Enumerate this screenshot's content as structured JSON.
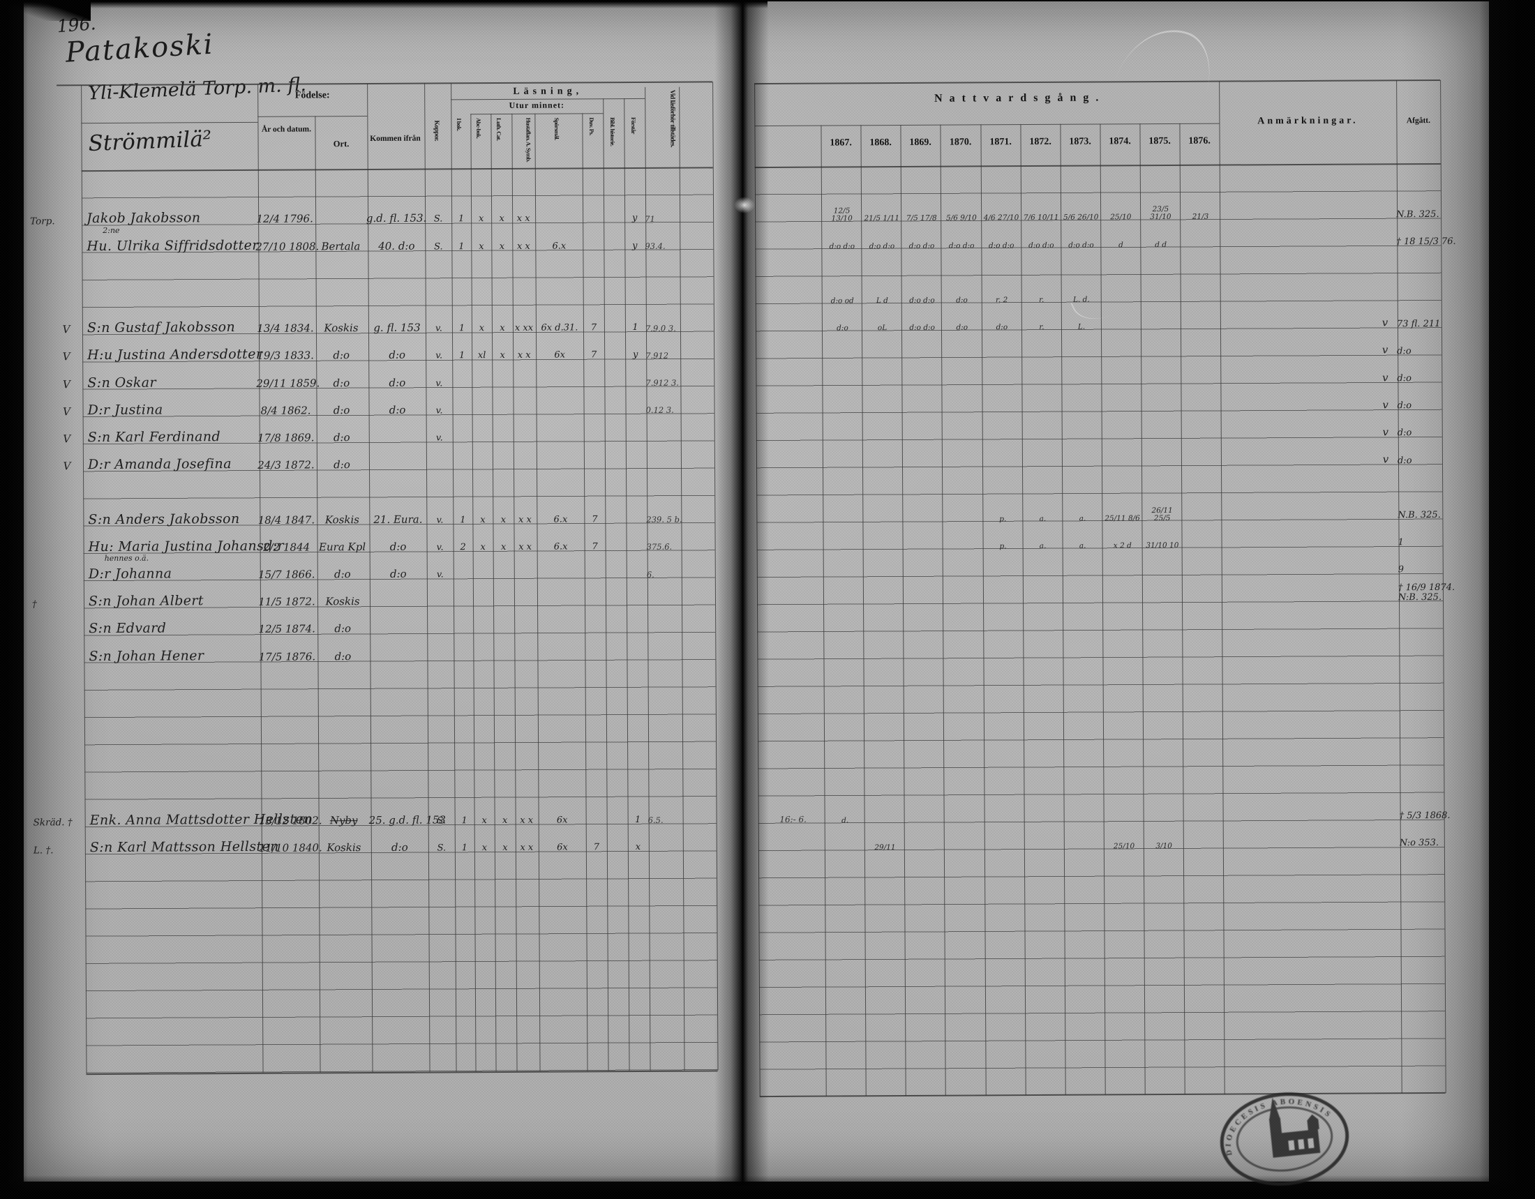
{
  "page": {
    "number": "196.",
    "place": "Patakoski",
    "holding_main": "Yli-Klemelä Torp. m. fl.",
    "holding_sub": "Strömmilä²"
  },
  "left_headers": {
    "fodelse": "Födelse:",
    "ar_och_datum": "År och datum.",
    "ort": "Ort.",
    "kommen_ifran": "Kommen ifrån",
    "koppor": "Koppor.",
    "lasning": "Läsning,",
    "utur_minnet": "Utur minnet:",
    "i_bok": "I bok.",
    "abc_bok": "Abc-bok.",
    "luth_cat": "Luth. Cat.",
    "hustaflan_symb": "Hustaflan. A. Symb.",
    "sporsmal": "Spörsmål.",
    "duv_ps": "Duv. Ps.",
    "bibl_historie": "Bibl. historie.",
    "forstar": "Förstår",
    "vid_lasforhor": "Vid läsförhör tillstädes."
  },
  "right_headers": {
    "title": "Nattvardsgång.",
    "years": [
      "1867.",
      "1868.",
      "1869.",
      "1870.",
      "1871.",
      "1872.",
      "1873.",
      "1874.",
      "1875.",
      "1876."
    ],
    "anmarkningar": "Anmärkningar.",
    "afgatt": "Afgått."
  },
  "rows": [
    {
      "line": 2,
      "margin": "Torp.",
      "name": "Jakob Jakobsson",
      "date": "12/4 1796.",
      "kommen": "g.d. fl. 153.",
      "koppor": "S.",
      "ibok": "1",
      "abc": "x",
      "luth": "x",
      "symb": "x x",
      "forstar": "y",
      "vid": "71",
      "natt": [
        "12/5 13/10",
        "21/5 1/11",
        "7/5 17/8",
        "5/6 9/10",
        "4/6 27/10",
        "7/6 10/11",
        "5/6 26/10",
        "25/10",
        "23/5 31/10",
        "21/3"
      ],
      "afgatt": "N.B. 325."
    },
    {
      "line": 3,
      "note_above": "2:ne",
      "name": "Hu. Ulrika Siffridsdotter",
      "date": "27/10 1808.",
      "ort": "Bertala",
      "kommen": "40. d:o",
      "koppor": "S.",
      "ibok": "1",
      "abc": "x",
      "luth": "x",
      "symb": "x x",
      "spors": "6.x",
      "forstar": "y",
      "vid": "93.4.",
      "natt": [
        "d:o d:o",
        "d:o d:o",
        "d:o d:o",
        "d:o d:o",
        "d:o d:o",
        "d:o d:o",
        "d:o d:o",
        "d",
        "d d",
        ""
      ],
      "afgatt": "† 18 15/3 76."
    },
    {
      "line": 5,
      "natt": [
        "d:o od",
        "L d",
        "d:o d:o",
        "d:o",
        "r. 2",
        "r.",
        "L. d.",
        "",
        "",
        ""
      ]
    },
    {
      "line": 6,
      "vcheck": "V",
      "name": "S:n Gustaf Jakobsson",
      "date": "13/4 1834.",
      "ort": "Koskis",
      "kommen": "g. fl. 153",
      "koppor": "v.",
      "ibok": "1",
      "abc": "x",
      "luth": "x",
      "symb": "x xx",
      "spors": "6x d.31.",
      "duv": "7",
      "forstar": "1",
      "vid": "7.9.0 3.",
      "natt": [
        "d:o",
        "oL",
        "d:o d:o",
        "d:o",
        "d:o",
        "r.",
        "L.",
        "",
        "",
        ""
      ],
      "rcheck": "v",
      "afgatt": "73 fl. 211"
    },
    {
      "line": 7,
      "vcheck": "V",
      "name": "H:u Justina Andersdotter",
      "date": "19/3 1833.",
      "ort": "d:o",
      "kommen": "d:o",
      "koppor": "v.",
      "ibok": "1",
      "abc": "xl",
      "luth": "x",
      "symb": "x x",
      "spors": "6x",
      "duv": "7",
      "forstar": "y",
      "vid": "7.912",
      "rcheck": "v",
      "afgatt": "d:o"
    },
    {
      "line": 8,
      "vcheck": "V",
      "name": "S:n Oskar",
      "date": "29/11 1859.",
      "ort": "d:o",
      "kommen": "d:o",
      "koppor": "v.",
      "vid": "7.912 3.",
      "rcheck": "v",
      "afgatt": "d:o"
    },
    {
      "line": 9,
      "vcheck": "V",
      "name": "D:r Justina",
      "date": "8/4 1862.",
      "ort": "d:o",
      "kommen": "d:o",
      "koppor": "v.",
      "vid": "0.12 3.",
      "rcheck": "v",
      "afgatt": "d:o"
    },
    {
      "line": 10,
      "vcheck": "V",
      "name": "S:n Karl Ferdinand",
      "date": "17/8 1869.",
      "ort": "d:o",
      "koppor": "v.",
      "rcheck": "v",
      "afgatt": "d:o"
    },
    {
      "line": 11,
      "vcheck": "V",
      "name": "D:r Amanda Josefina",
      "date": "24/3 1872.",
      "ort": "d:o",
      "rcheck": "v",
      "afgatt": "d:o"
    },
    {
      "line": 13,
      "name": "S:n Anders Jakobsson",
      "date": "18/4 1847.",
      "ort": "Koskis",
      "kommen": "21. Eura.",
      "koppor": "v.",
      "ibok": "1",
      "abc": "x",
      "luth": "x",
      "symb": "x x",
      "spors": "6.x",
      "duv": "7",
      "vid": "239. 5 b.",
      "natt": [
        "",
        "",
        "",
        "",
        "p.",
        "a.",
        "a.",
        "25/11 8/6",
        "26/11 25/5",
        ""
      ],
      "afgatt": "N.B. 325."
    },
    {
      "line": 14,
      "name": "Hu: Maria Justina Johansd:r",
      "date": "2/2 1844",
      "ort": "Eura Kpl",
      "kommen": "d:o",
      "koppor": "v.",
      "ibok": "2",
      "abc": "x",
      "luth": "x",
      "symb": "x x",
      "spors": "6.x",
      "duv": "7",
      "vid": "375.6.",
      "natt": [
        "",
        "",
        "",
        "",
        "p.",
        "a.",
        "a.",
        "x 2 d",
        "31/10 10",
        ""
      ],
      "afgatt": "1"
    },
    {
      "line": 15,
      "note_above": "hennes o.ä.",
      "name": "D:r Johanna",
      "date": "15/7 1866.",
      "ort": "d:o",
      "kommen": "d:o",
      "koppor": "v.",
      "vid": "6.",
      "afgatt": "9"
    },
    {
      "line": 16,
      "margin": "†",
      "name": "S:n Johan Albert",
      "date": "11/5 1872.",
      "ort": "Koskis",
      "afgatt": "† 16/9 1874. N:B. 325."
    },
    {
      "line": 17,
      "name": "S:n Edvard",
      "date": "12/5 1874.",
      "ort": "d:o"
    },
    {
      "line": 18,
      "name": "S:n Johan Hener",
      "date": "17/5 1876.",
      "ort": "d:o"
    },
    {
      "line": 24,
      "margin": "Skräd. †",
      "name": "Enk. Anna Mattsdotter Hellsten",
      "date": "13/12 1802.",
      "ort": "Nyby",
      "ort_struck": true,
      "kommen": "25. g.d. fl. 153",
      "koppor": "S.",
      "ibok": "1",
      "abc": "x",
      "luth": "x",
      "symb": "x x",
      "spors": "6x",
      "forstar": "1",
      "vid": "6.5.",
      "pre": "16:-  6.",
      "natt": [
        "d.",
        "",
        "",
        "",
        "",
        "",
        "",
        "",
        "",
        ""
      ],
      "afgatt": "† 5/3 1868."
    },
    {
      "line": 25,
      "margin": "L. †.",
      "name": "S:n Karl Mattsson Hellsten",
      "date": "11/10 1840.",
      "ort": "Koskis",
      "kommen": "d:o",
      "koppor": "S.",
      "ibok": "1",
      "abc": "x",
      "luth": "x",
      "symb": "x x",
      "spors": "6x",
      "duv": "7",
      "forstar": "x",
      "natt": [
        "",
        "29/11",
        "",
        "",
        "",
        "",
        "",
        "25/10",
        "3/10",
        ""
      ],
      "afgatt": "N:o 353."
    }
  ],
  "stamp": {
    "icon": "church-seal",
    "ring_text": "DIOECESIS ABOENSIS"
  },
  "colors": {
    "paper": "#b4b4b4",
    "ink": "#191919",
    "rule_line": "#2f2f2f"
  }
}
